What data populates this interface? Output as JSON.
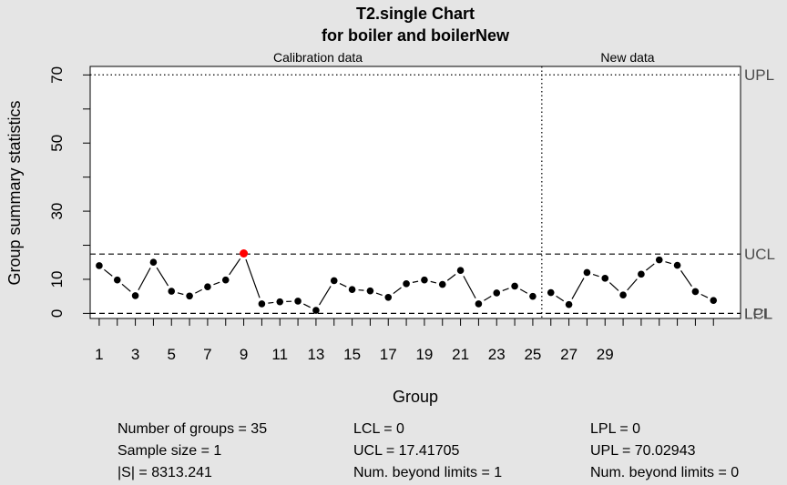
{
  "chart_data": {
    "type": "line",
    "title": "T2.single Chart",
    "subtitle": "for boiler and boilerNew",
    "xlabel": "Group",
    "ylabel": "Group summary statistics",
    "xlim": [
      0.5,
      36.5
    ],
    "ylim": [
      -1.5,
      72.5
    ],
    "x_tick_labels": [
      "1",
      "3",
      "5",
      "7",
      "9",
      "11",
      "13",
      "15",
      "17",
      "19",
      "21",
      "23",
      "25",
      "27",
      "29"
    ],
    "y_tick_labels": [
      "0",
      "10",
      "30",
      "50",
      "70"
    ],
    "minor_y_ticks": [
      20,
      40,
      60
    ],
    "phase_labels": {
      "calibration": "Calibration data",
      "new": "New data"
    },
    "phase_boundary": 25.5,
    "limit_labels": {
      "upl": "UPL",
      "ucl": "UCL",
      "lcl": "LCL",
      "lpl": "LPL"
    },
    "limits": {
      "upl": 70.02943,
      "ucl": 17.41705,
      "lcl": 0,
      "lpl": 0
    },
    "series": [
      {
        "x": [
          1,
          2,
          3,
          4,
          5,
          6,
          7,
          8,
          9,
          10,
          11,
          12,
          13,
          14,
          15,
          16,
          17,
          18,
          19,
          20,
          21,
          22,
          23,
          24,
          25
        ],
        "values": [
          14.0,
          9.8,
          5.2,
          15.0,
          6.5,
          5.1,
          7.8,
          9.8,
          17.6,
          2.8,
          3.4,
          3.6,
          0.9,
          9.6,
          7.0,
          6.6,
          4.7,
          8.7,
          9.8,
          8.5,
          12.6,
          2.8,
          6.0,
          8.0,
          5.0
        ],
        "beyond_limits": [
          9
        ]
      },
      {
        "x": [
          26,
          27,
          28,
          29,
          30,
          31,
          32,
          33,
          34,
          35
        ],
        "values": [
          6.1,
          2.6,
          12.0,
          10.3,
          5.4,
          11.5,
          15.7,
          14.1,
          6.4,
          3.8
        ]
      }
    ],
    "colors": {
      "point": "#000000",
      "violation": "#ff0000",
      "background": "#e5e5e5",
      "plot_background": "#ffffff"
    }
  },
  "stats": {
    "col1": [
      "Number of groups = 35",
      "Sample size = 1",
      "|S| = 8313.241"
    ],
    "col2": [
      "LCL = 0",
      "UCL = 17.41705",
      "Num. beyond limits = 1"
    ],
    "col3": [
      "LPL = 0",
      "UPL = 70.02943",
      "Num. beyond limits = 0"
    ]
  }
}
